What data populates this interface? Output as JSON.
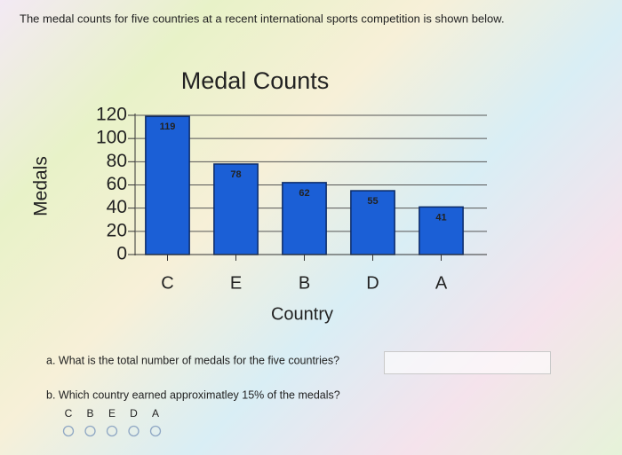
{
  "prompt": "The medal counts for five countries at a recent international sports competition is shown below.",
  "chart_data": {
    "type": "bar",
    "title": "Medal Counts",
    "x_label": "Country",
    "y_label": "Medals",
    "categories": [
      "C",
      "E",
      "B",
      "D",
      "A"
    ],
    "values": [
      119,
      78,
      62,
      55,
      41
    ],
    "color": "#1b5fd6",
    "ylim": [
      0,
      120
    ],
    "yticks": [
      0,
      20,
      40,
      60,
      80,
      100,
      120
    ],
    "grid": true
  },
  "question_a": "a. What is the total number of medals for the five countries?",
  "question_b": "b. Which country earned approximatley 15% of the medals?",
  "options": [
    "C",
    "B",
    "E",
    "D",
    "A"
  ]
}
